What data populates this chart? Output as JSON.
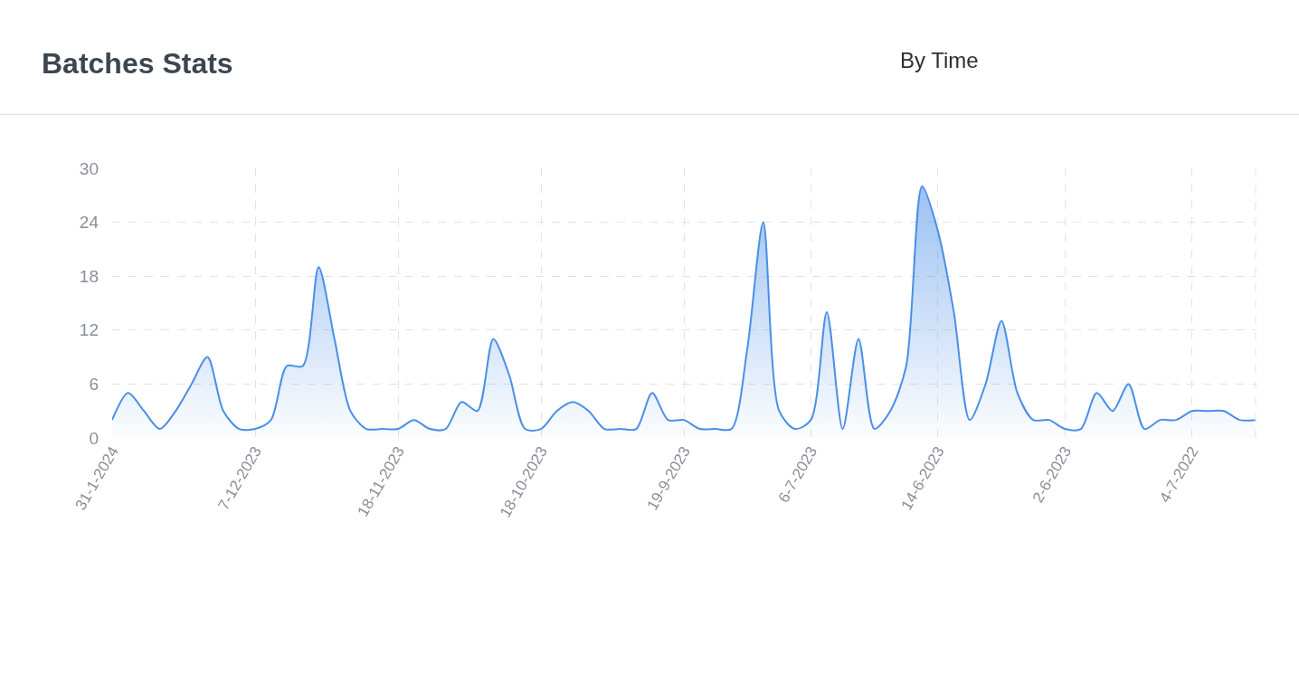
{
  "chart_data": {
    "type": "area",
    "title": "Batches Stats",
    "annotations": [
      "By Time"
    ],
    "categories": [
      "31-1-2024",
      null,
      null,
      null,
      null,
      null,
      null,
      null,
      null,
      "7-12-2023",
      null,
      null,
      null,
      null,
      null,
      null,
      null,
      null,
      "18-11-2023",
      null,
      null,
      null,
      null,
      null,
      null,
      null,
      null,
      "18-10-2023",
      null,
      null,
      null,
      null,
      null,
      null,
      null,
      null,
      "19-9-2023",
      null,
      null,
      null,
      null,
      null,
      null,
      null,
      "6-7-2023",
      null,
      null,
      null,
      null,
      null,
      null,
      null,
      "14-6-2023",
      null,
      null,
      null,
      null,
      null,
      null,
      null,
      "2-6-2023",
      null,
      null,
      null,
      null,
      null,
      null,
      null,
      "4-7-2022",
      null,
      null,
      null,
      null
    ],
    "values": [
      2,
      5,
      3,
      1,
      3,
      6,
      9,
      3,
      1,
      1,
      2,
      8,
      8,
      19,
      11,
      3,
      1,
      1,
      1,
      2,
      1,
      1,
      4,
      3,
      11,
      7,
      1,
      1,
      3,
      4,
      3,
      1,
      1,
      1,
      5,
      2,
      2,
      1,
      1,
      1,
      10,
      24,
      3,
      1,
      2,
      14,
      1,
      11,
      1,
      3,
      8,
      28,
      23,
      14,
      2,
      6,
      13,
      5,
      2,
      2,
      1,
      1,
      5,
      3,
      6,
      1,
      2,
      2,
      3,
      3,
      3,
      2,
      2
    ],
    "color": "#4a8fe7",
    "ylim": [
      0,
      30
    ],
    "yticks": [
      0,
      6,
      12,
      18,
      24,
      30
    ],
    "grid": true
  }
}
